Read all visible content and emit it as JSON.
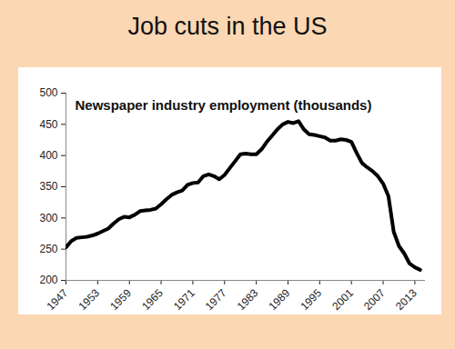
{
  "slide": {
    "title": "Job cuts in the US"
  },
  "chart_data": {
    "type": "line",
    "title": "Newspaper industry employment (thousands)",
    "x": [
      1947,
      1948,
      1949,
      1950,
      1951,
      1952,
      1953,
      1954,
      1955,
      1956,
      1957,
      1958,
      1959,
      1960,
      1961,
      1962,
      1963,
      1964,
      1965,
      1966,
      1967,
      1968,
      1969,
      1970,
      1971,
      1972,
      1973,
      1974,
      1975,
      1976,
      1977,
      1978,
      1979,
      1980,
      1981,
      1982,
      1983,
      1984,
      1985,
      1986,
      1987,
      1988,
      1989,
      1990,
      1991,
      1992,
      1993,
      1994,
      1995,
      1996,
      1997,
      1998,
      1999,
      2000,
      2001,
      2002,
      2003,
      2004,
      2005,
      2006,
      2007,
      2008,
      2009,
      2010,
      2011,
      2012,
      2013,
      2014
    ],
    "values": [
      253,
      263,
      268,
      269,
      270,
      272,
      275,
      279,
      283,
      291,
      298,
      302,
      301,
      305,
      311,
      312,
      313,
      315,
      322,
      330,
      337,
      341,
      344,
      353,
      356,
      357,
      367,
      370,
      367,
      362,
      369,
      380,
      391,
      402,
      403,
      402,
      402,
      410,
      422,
      432,
      442,
      450,
      454,
      452,
      455,
      442,
      434,
      433,
      431,
      429,
      424,
      424,
      426,
      425,
      422,
      404,
      388,
      381,
      375,
      367,
      355,
      335,
      278,
      255,
      243,
      227,
      221,
      217
    ],
    "color": "#000000",
    "xlim": [
      1947,
      2015
    ],
    "xticks": [
      1947,
      1953,
      1959,
      1965,
      1971,
      1977,
      1983,
      1989,
      1995,
      2001,
      2007,
      2013
    ],
    "ylim": [
      200,
      500
    ],
    "yticks": [
      200,
      250,
      300,
      350,
      400,
      450,
      500
    ],
    "grid": false
  }
}
